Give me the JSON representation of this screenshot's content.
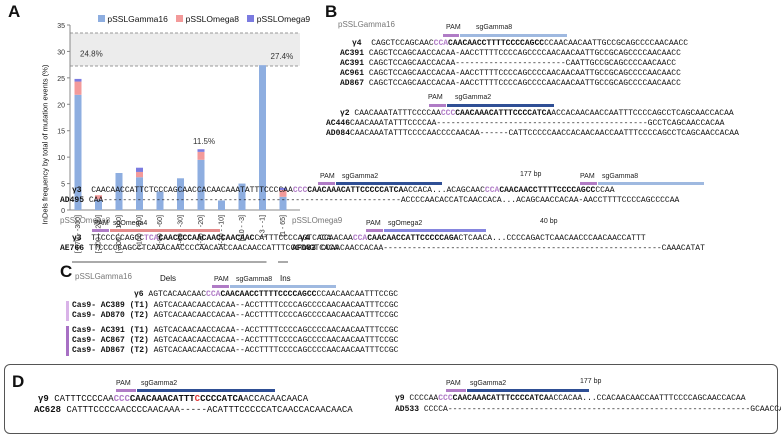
{
  "panels": {
    "a": "A",
    "b": "B",
    "c": "C",
    "d": "D"
  },
  "colors": {
    "pssl_gamma16": "#8eaee0",
    "pssl_omega8": "#f39a9a",
    "pssl_omega9": "#7b7be0",
    "pam": "#b07cc6",
    "sg_gamma8": "#9fb9e0",
    "sg_gamma2": "#2f4f95",
    "sg_omega4": "#e48c8c",
    "sg_omega2": "#8686df"
  },
  "chart_data": {
    "type": "bar",
    "stacked": true,
    "ylabel": "InDels frequency by total of mutation events (%)",
    "ylim": [
      0,
      35
    ],
    "yticks": [
      "0",
      "5",
      "10",
      "15",
      "20",
      "25",
      "30",
      "35"
    ],
    "categories": [
      "[-570 - -300]",
      "[-300 - -200]",
      "[-200 - -100]",
      "[-100 - -80]",
      "[-80 - -60]",
      "[-60 - -30]",
      "[-30 - -20]",
      "[-20 - -10]",
      "[-10 - -3]",
      "[-3 - -1]",
      "[1 - 65]"
    ],
    "series": [
      {
        "name": "pSSLGamma16",
        "values": [
          21.8,
          2.0,
          7.0,
          6.2,
          3.5,
          6.0,
          9.5,
          1.8,
          5.0,
          27.4,
          2.5
        ]
      },
      {
        "name": "pSSLOmega8",
        "values": [
          2.5,
          0.8,
          0.0,
          1.0,
          0.0,
          0.0,
          1.5,
          0.0,
          0.0,
          0.0,
          1.3
        ]
      },
      {
        "name": "pSSLOmega9",
        "values": [
          0.5,
          0.0,
          0.0,
          0.8,
          0.0,
          0.0,
          0.5,
          0.0,
          0.0,
          0.0,
          0.4
        ]
      }
    ],
    "annotations": [
      "24.8%",
      "11.5%",
      "27.4%"
    ],
    "group_labels": [
      "Dels",
      "Ins"
    ]
  },
  "B": {
    "plasmid1": "pSSLGamma16",
    "plasmid2": "pSSLOmega8",
    "plasmid3": "pSSLOmega9",
    "pam": "PAM",
    "sg_gamma8": "sgGamma8",
    "sg_gamma2": "sgGamma2",
    "sg_omega4": "sgOmega4",
    "sg_omega2": "sgOmega2",
    "gap177": "177 bp",
    "gap40": "40 bp",
    "y4": {
      "label": "γ4",
      "pre": "CAGCTCCAGCAAC",
      "pam": "CCA",
      "target": "CAACAACCTTTTCCCCAGCC",
      "post": "CCAACAACAATTGCCGCAGCCCCAACAACC"
    },
    "y4_rows": [
      {
        "label": "AC391",
        "seq": "CAGCTCCAGCAACCACAA-AACCTTTTCCCCAGCCCCAACAACAATTGCCGCAGCCCCAACAACC"
      },
      {
        "label": "AC391",
        "seq": "CAGCTCCAGCAACCACAA-----------------------CAATTGCCGCAGCCCCAACAACC"
      },
      {
        "label": "AC961",
        "seq": "CAGCTCCAGCAACCACAA-AACCTTTTCCCCAGCCCCAACAACAATTGCCGCAGCCCCAACAACC"
      },
      {
        "label": "AD867",
        "seq": "CAGCTCCAGCAACCACAA-AACCTTTTCCCCAGCCCCAACAACAATTGCCGCAGCCCCAACAACC"
      }
    ],
    "y2": {
      "label": "γ2",
      "pre": "CAACAAATATTTCCCCAA",
      "pam": "CCC",
      "target": "CAACAAACATTTCCCCATCA",
      "post": "ACCACAACAACCAATTTCCCCAGCCTCAGCAACCACAA"
    },
    "y2_rows": [
      {
        "label": "AC446",
        "seq": "CAACAAATATTTCCCCAA--------------------------------------------GCCTCAGCAACCACAA"
      },
      {
        "label": "AD084",
        "seq": "CAACAAATATTTCCCCAACCCCAACAA------CATTCCCCCAACCACAACAACCAATTTCCCCAGCCTCAGCAACCACAA"
      }
    ],
    "y3": {
      "label": "γ3",
      "pre": "CAACAACCATTCTCCCAGCAACCACAACAAATATTTCCCCAA",
      "pam": "CCC",
      "target": "CAACAAACATTCCCCCATCA",
      "mid": "ACCACA...ACAGCAAC",
      "pam2": "CCA",
      "target2": "CAACAACCTTTTCCCCAGCC",
      "post": "CCAA"
    },
    "y3_row": {
      "label": "AD495",
      "seq": "CAA--------------------------------------------------------------ACCCCAACACCATCAACCACA...ACAGCAACCACAA-AACCTTTTCCCCAGCCCCAA"
    },
    "o3": {
      "label": "γ3",
      "pre": "TTCCCCCAGCC",
      "pam": "TCA",
      "target": "CAACCCCAACAACCAACAAC",
      "post": "CATTTCCCCAGTCACA"
    },
    "o3_row": {
      "label": "AE766",
      "seq": "TTCCCCCAGCCTCAAACAACCCCAACAACCAACAACCATTTCCCCAGTCACA"
    },
    "o4": {
      "label": "γ4",
      "pre": "CCAACAA",
      "pam": "CCA",
      "target": "CAACAACCATTCCCCCAGA",
      "post": "CTCAACA...CCCCAGACTCAACAACCCAACAACCATTT"
    },
    "o4_row": {
      "label": "AF083",
      "seq": "CCAACAACCACAA----------------------------------------------------------CAAACATAT"
    }
  },
  "C": {
    "plasmid": "pSSLGamma16",
    "pam": "PAM",
    "sg": "sgGamma8",
    "y6": {
      "label": "γ6",
      "pre": "AGTCACAACAAC",
      "pam": "CCA",
      "target": "CAACAACCTTTTCCCCAGCC",
      "post": "CCAACAACAATTTCCGC"
    },
    "rows": [
      {
        "label": "Cas9- AC389 (T1)",
        "seq": "AGTCACAACAACCACAA--ACCTTTTCCCCAGCCCCAACAACAATTTCCGC"
      },
      {
        "label": "Cas9- AD870 (T2)",
        "seq": "AGTCACAACAACCACAA--ACCTTTTCCCCAGCCCCAACAACAATTTCCGC"
      },
      {
        "label": "Cas9- AC391 (T1)",
        "seq": "AGTCACAACAACCACAA--ACCTTTTCCCCAGCCCCAACAACAATTTCCGC"
      },
      {
        "label": "Cas9- AC867 (T2)",
        "seq": "AGTCACAACAACCACAA--ACCTTTTCCCCAGCCCCAACAACAATTTCCGC"
      },
      {
        "label": "Cas9- AD867 (T2)",
        "seq": "AGTCACAACAACCACAA--ACCTTTTCCCCAGCCCCAACAACAATTTCCGC"
      }
    ]
  },
  "D": {
    "pam": "PAM",
    "sg": "sgGamma2",
    "gap": "177 bp",
    "left": {
      "label": "γ9",
      "pre": "CATTTCCCCAA",
      "pam": "CCC",
      "target1": "CAACAAACATTT",
      "ins": "C",
      "target2": "CCCCATCA",
      "post": "ACCACAACAACA",
      "row_label": "AC628",
      "row_seq": "CATTTCCCCAACCCCAACAAA-----ACATTTCCCCCATCAACCACAACAACA"
    },
    "right": {
      "label": "γ9",
      "pre": "CCCCAA",
      "pam": "CCC",
      "target": "CAACAAACATTTCCCCATCA",
      "post": "ACCACAA...CCACAACAACCAATTTCCCCAGCAACCACAA",
      "row_label": "AD533",
      "row_seq": "CCCCA---------------------------------------------------------------GCAACCACAA"
    }
  }
}
